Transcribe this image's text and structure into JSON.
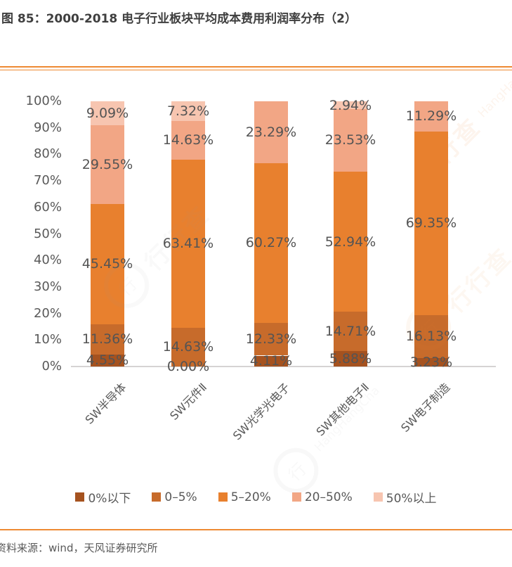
{
  "page": {
    "title": "图 85：2000-2018 电子行业板块平均成本费用利润率分布（2）",
    "source": "资料来源：wind，天风证券研究所",
    "watermark": {
      "cn": "行行查",
      "en": "HangHangCha",
      "ring_glyph": "行"
    }
  },
  "colors": {
    "accent_rule": "#ee8a33",
    "axis_line": "#d6d3d3",
    "label_gray": "#595959",
    "title_gray": "#3f3f3f"
  },
  "chart_data": {
    "type": "bar",
    "stacked": true,
    "title": "2000-2018 电子行业板块平均成本费用利润率分布（2）",
    "xlabel": "",
    "ylabel": "",
    "ylim": [
      0,
      100
    ],
    "gridlines": false,
    "legend_position": "bottom",
    "categories": [
      "SW半导体",
      "SW元件Ⅱ",
      "SW光学光电子",
      "SW其他电子Ⅱ",
      "SW电子制造"
    ],
    "series": [
      {
        "name": "0%以下",
        "color": "#a5521f",
        "values": [
          4.55,
          0.0,
          4.11,
          5.88,
          3.23
        ],
        "labels": [
          "4.55%",
          "0.00%",
          "4.11%",
          "5.88%",
          "3.23%"
        ]
      },
      {
        "name": "0–5%",
        "color": "#c76b2b",
        "values": [
          11.36,
          14.63,
          12.33,
          14.71,
          16.13
        ],
        "labels": [
          "11.36%",
          "14.63%",
          "12.33%",
          "14.71%",
          "16.13%"
        ]
      },
      {
        "name": "5–20%",
        "color": "#e8802e",
        "values": [
          45.45,
          63.41,
          60.27,
          52.94,
          69.35
        ],
        "labels": [
          "45.45%",
          "63.41%",
          "60.27%",
          "52.94%",
          "69.35%"
        ]
      },
      {
        "name": "20–50%",
        "color": "#f2a685",
        "values": [
          29.55,
          14.63,
          23.29,
          23.53,
          11.29
        ],
        "labels": [
          "29.55%",
          "14.63%",
          "23.29%",
          "23.53%",
          "11.29%"
        ]
      },
      {
        "name": "50%以上",
        "color": "#f7c5b0",
        "values": [
          9.09,
          7.32,
          0,
          2.94,
          0
        ],
        "labels": [
          "9.09%",
          "7.32%",
          null,
          "2.94%",
          null
        ]
      }
    ],
    "y_axis": {
      "min": 0,
      "max": 100,
      "step": 10,
      "ticks": [
        "0%",
        "10%",
        "20%",
        "30%",
        "40%",
        "50%",
        "60%",
        "70%",
        "80%",
        "90%",
        "100%"
      ]
    }
  }
}
